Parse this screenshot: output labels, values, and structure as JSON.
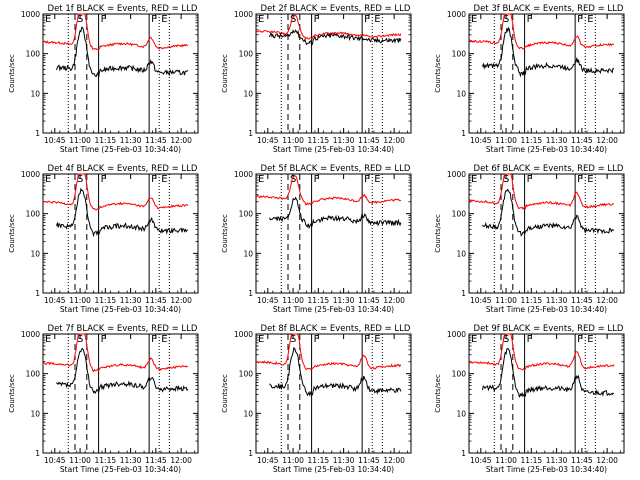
{
  "chart_data": {
    "type": "line",
    "yscale": "log",
    "ylim": [
      1,
      1000
    ],
    "yticks": [
      {
        "value": 1,
        "label": "1"
      },
      {
        "value": 10,
        "label": "10"
      },
      {
        "value": 100,
        "label": "100"
      },
      {
        "value": 1000,
        "label": "1000"
      }
    ],
    "ylabel": "Counts/sec",
    "xlabel": "Start Time (25-Feb-03 10:34:40)",
    "xlim": [
      "10:38",
      "12:10"
    ],
    "xticks": [
      {
        "value": "10:45",
        "label": "10:45"
      },
      {
        "value": "11:00",
        "label": "11:00"
      },
      {
        "value": "11:15",
        "label": "11:15"
      },
      {
        "value": "11:30",
        "label": "11:30"
      },
      {
        "value": "11:45",
        "label": "11:45"
      },
      {
        "value": "12:00",
        "label": "12:00"
      }
    ],
    "grid": false,
    "series_colors": {
      "events": "#000000",
      "lld": "#ff0000"
    },
    "markers": [
      {
        "time": "10:38",
        "label": "E",
        "style": "dotted"
      },
      {
        "time": "10:53",
        "label": "",
        "style": "dotted"
      },
      {
        "time": "10:57",
        "label": "S",
        "style": "dashed"
      },
      {
        "time": "11:04",
        "label": "",
        "style": "dashed"
      },
      {
        "time": "11:11",
        "label": "F",
        "style": "solid"
      },
      {
        "time": "11:41",
        "label": "F",
        "style": "solid"
      },
      {
        "time": "11:47",
        "label": "E",
        "style": "dotted"
      },
      {
        "time": "11:53",
        "label": "",
        "style": "dotted"
      }
    ],
    "panels": [
      {
        "title": "Det 1f BLACK = Events, RED = LLD",
        "events_base": 40,
        "lld_base": 160,
        "flare_peak": 1500,
        "bump": 1.8
      },
      {
        "title": "Det 2f BLACK = Events, RED = LLD",
        "events_base": 260,
        "lld_base": 300,
        "flare_peak": 650,
        "bump": 1.1
      },
      {
        "title": "Det 3f BLACK = Events, RED = LLD",
        "events_base": 45,
        "lld_base": 170,
        "flare_peak": 1500,
        "bump": 1.8
      },
      {
        "title": "Det 4f BLACK = Events, RED = LLD",
        "events_base": 45,
        "lld_base": 160,
        "flare_peak": 1500,
        "bump": 1.8
      },
      {
        "title": "Det 5f BLACK = Events, RED = LLD",
        "events_base": 70,
        "lld_base": 220,
        "flare_peak": 700,
        "bump": 1.5
      },
      {
        "title": "Det 6f BLACK = Events, RED = LLD",
        "events_base": 45,
        "lld_base": 170,
        "flare_peak": 1500,
        "bump": 2.2
      },
      {
        "title": "Det 7f BLACK = Events, RED = LLD",
        "events_base": 50,
        "lld_base": 150,
        "flare_peak": 1500,
        "bump": 1.8
      },
      {
        "title": "Det 8f BLACK = Events, RED = LLD",
        "events_base": 45,
        "lld_base": 160,
        "flare_peak": 1500,
        "bump": 2.0
      },
      {
        "title": "Det 9f BLACK = Events, RED = LLD",
        "events_base": 40,
        "lld_base": 160,
        "flare_peak": 1500,
        "bump": 2.5
      }
    ]
  }
}
